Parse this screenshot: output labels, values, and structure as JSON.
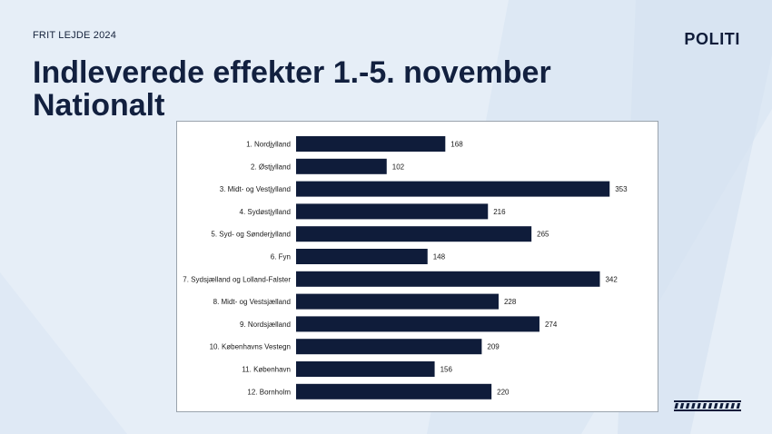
{
  "header": {
    "tag": "FRIT LEJDE 2024",
    "logo": "POLITI",
    "title_line1": "Indleverede effekter 1.-5. november",
    "title_line2": "Nationalt"
  },
  "colors": {
    "background": "#e6eef7",
    "bar": "#0f1c3a",
    "title": "#12203f"
  },
  "chart_data": {
    "type": "bar",
    "orientation": "horizontal",
    "categories": [
      "1. Nordjylland",
      "2. Østjylland",
      "3. Midt- og Vestjylland",
      "4. Sydøstjylland",
      "5. Syd- og Sønderjylland",
      "6. Fyn",
      "7. Sydsjælland og Lolland-Falster",
      "8. Midt- og Vestsjælland",
      "9. Nordsjælland",
      "10. Københavns Vestegn",
      "11. København",
      "12. Bornholm"
    ],
    "values": [
      168,
      102,
      353,
      216,
      265,
      148,
      342,
      228,
      274,
      209,
      156,
      220
    ],
    "data_labels": true,
    "grid": false,
    "legend": "none"
  }
}
